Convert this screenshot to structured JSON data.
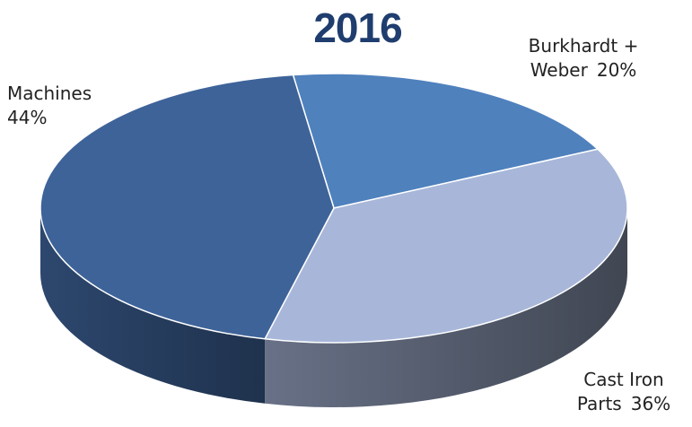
{
  "chart_data": {
    "type": "pie",
    "title": "2016",
    "categories": [
      "Burkhardt + Weber",
      "Cast Iron Parts",
      "Machines"
    ],
    "values": [
      20,
      36,
      44
    ],
    "value_labels": [
      "20%",
      "36%",
      "44%"
    ],
    "colors": [
      "#4f81bd",
      "#a8b7d9",
      "#3e6399"
    ]
  }
}
